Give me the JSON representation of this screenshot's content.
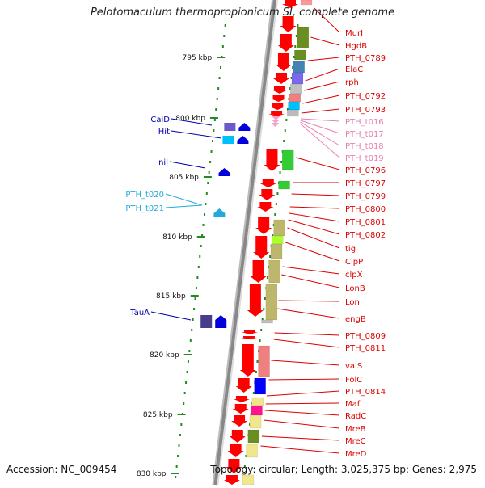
{
  "title": "Pelotomaculum thermopropionicum SI, complete genome",
  "footer": {
    "accession": "Accession: NC_009454",
    "topology": "Topology: circular; Length: 3,025,375 bp; Genes: 2,975"
  },
  "colors": {
    "backbone": "#9a9a9a",
    "scale": "#228b22",
    "cds": "#ff0000",
    "rna_label": "#e87fb0",
    "left_label": "#0000aa",
    "left_label_light": "#22aadd"
  },
  "scale_marks": [
    "795 kbp",
    "800 kbp",
    "805 kbp",
    "810 kbp",
    "815 kbp",
    "820 kbp",
    "825 kbp",
    "830 kbp"
  ],
  "right_labels": [
    {
      "text": "MurI",
      "color": "#dd0000"
    },
    {
      "text": "HgdB",
      "color": "#dd0000"
    },
    {
      "text": "PTH_0789",
      "color": "#dd0000"
    },
    {
      "text": "ElaC",
      "color": "#dd0000"
    },
    {
      "text": "rph",
      "color": "#dd0000"
    },
    {
      "text": "PTH_0792",
      "color": "#dd0000"
    },
    {
      "text": "PTH_0793",
      "color": "#dd0000"
    },
    {
      "text": "PTH_t016",
      "color": "#e87fb0"
    },
    {
      "text": "PTH_t017",
      "color": "#e87fb0"
    },
    {
      "text": "PTH_t018",
      "color": "#e87fb0"
    },
    {
      "text": "PTH_t019",
      "color": "#e87fb0"
    },
    {
      "text": "PTH_0796",
      "color": "#dd0000"
    },
    {
      "text": "PTH_0797",
      "color": "#dd0000"
    },
    {
      "text": "PTH_0799",
      "color": "#dd0000"
    },
    {
      "text": "PTH_0800",
      "color": "#dd0000"
    },
    {
      "text": "PTH_0801",
      "color": "#dd0000"
    },
    {
      "text": "PTH_0802",
      "color": "#dd0000"
    },
    {
      "text": "tig",
      "color": "#dd0000"
    },
    {
      "text": "ClpP",
      "color": "#dd0000"
    },
    {
      "text": "clpX",
      "color": "#dd0000"
    },
    {
      "text": "LonB",
      "color": "#dd0000"
    },
    {
      "text": "Lon",
      "color": "#dd0000"
    },
    {
      "text": "engB",
      "color": "#dd0000"
    },
    {
      "text": "PTH_0809",
      "color": "#dd0000"
    },
    {
      "text": "PTH_0811",
      "color": "#dd0000"
    },
    {
      "text": "valS",
      "color": "#dd0000"
    },
    {
      "text": "FolC",
      "color": "#dd0000"
    },
    {
      "text": "PTH_0814",
      "color": "#dd0000"
    },
    {
      "text": "Maf",
      "color": "#dd0000"
    },
    {
      "text": "RadC",
      "color": "#dd0000"
    },
    {
      "text": "MreB",
      "color": "#dd0000"
    },
    {
      "text": "MreC",
      "color": "#dd0000"
    },
    {
      "text": "MreD",
      "color": "#dd0000"
    }
  ],
  "left_labels": [
    {
      "text": "CaiD",
      "color": "#0000aa"
    },
    {
      "text": "Hit",
      "color": "#0000aa"
    },
    {
      "text": "nil",
      "color": "#0000aa"
    },
    {
      "text": "PTH_t020",
      "color": "#22aadd"
    },
    {
      "text": "PTH_t021",
      "color": "#22aadd"
    },
    {
      "text": "TauA",
      "color": "#0000aa"
    }
  ]
}
